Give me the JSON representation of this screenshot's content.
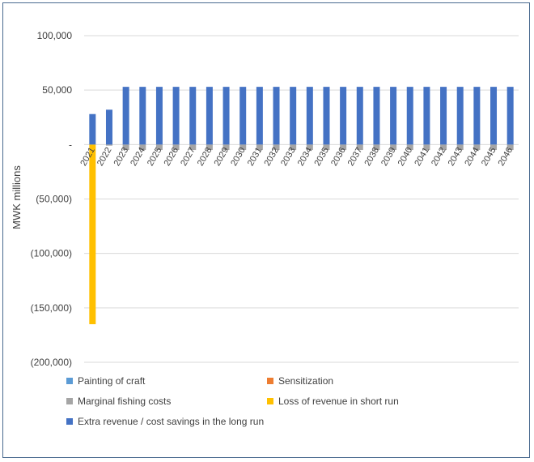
{
  "chart_data": {
    "type": "bar",
    "stacked": true,
    "ylabel": "MWK millions",
    "ylim": [
      -200000,
      100000
    ],
    "yticks": [
      100000,
      50000,
      0,
      -50000,
      -100000,
      -150000,
      -200000
    ],
    "ytick_labels": [
      "100,000",
      "50,000",
      "-",
      "(50,000)",
      "(100,000)",
      "(150,000)",
      "(200,000)"
    ],
    "grid": true,
    "legend_position": "bottom",
    "categories": [
      "2021",
      "2022",
      "2023",
      "2024",
      "2025",
      "2026",
      "2027",
      "2028",
      "2029",
      "2030",
      "2031",
      "2032",
      "2033",
      "2034",
      "2035",
      "2036",
      "2037",
      "2038",
      "2039",
      "2040",
      "2041",
      "2042",
      "2043",
      "2044",
      "2045",
      "2046"
    ],
    "series": [
      {
        "name": "Painting of craft",
        "color": "#5b9bd5",
        "values": [
          0,
          0,
          0,
          0,
          0,
          0,
          0,
          0,
          0,
          0,
          0,
          0,
          0,
          0,
          0,
          0,
          0,
          0,
          0,
          0,
          0,
          0,
          0,
          0,
          0,
          0
        ]
      },
      {
        "name": "Sensitization",
        "color": "#ed7d31",
        "values": [
          0,
          0,
          0,
          0,
          0,
          0,
          0,
          0,
          0,
          0,
          0,
          0,
          0,
          0,
          0,
          0,
          0,
          0,
          0,
          0,
          0,
          0,
          0,
          0,
          0,
          0
        ]
      },
      {
        "name": "Marginal fishing costs",
        "color": "#a5a5a5",
        "values": [
          0,
          -1000,
          -5000,
          -5000,
          -5000,
          -5000,
          -5000,
          -5000,
          -5000,
          -5000,
          -5000,
          -5000,
          -5000,
          -5000,
          -5000,
          -5000,
          -5000,
          -5000,
          -5000,
          -5000,
          -5000,
          -5000,
          -5000,
          -5000,
          -5000,
          -5000
        ]
      },
      {
        "name": "Loss of revenue in short run",
        "color": "#ffc000",
        "values": [
          -165000,
          0,
          0,
          0,
          0,
          0,
          0,
          0,
          0,
          0,
          0,
          0,
          0,
          0,
          0,
          0,
          0,
          0,
          0,
          0,
          0,
          0,
          0,
          0,
          0,
          0
        ]
      },
      {
        "name": "Extra revenue / cost savings in the long run",
        "color": "#4472c4",
        "values": [
          28000,
          32000,
          53000,
          53000,
          53000,
          53000,
          53000,
          53000,
          53000,
          53000,
          53000,
          53000,
          53000,
          53000,
          53000,
          53000,
          53000,
          53000,
          53000,
          53000,
          53000,
          53000,
          53000,
          53000,
          53000,
          53000
        ]
      }
    ]
  }
}
